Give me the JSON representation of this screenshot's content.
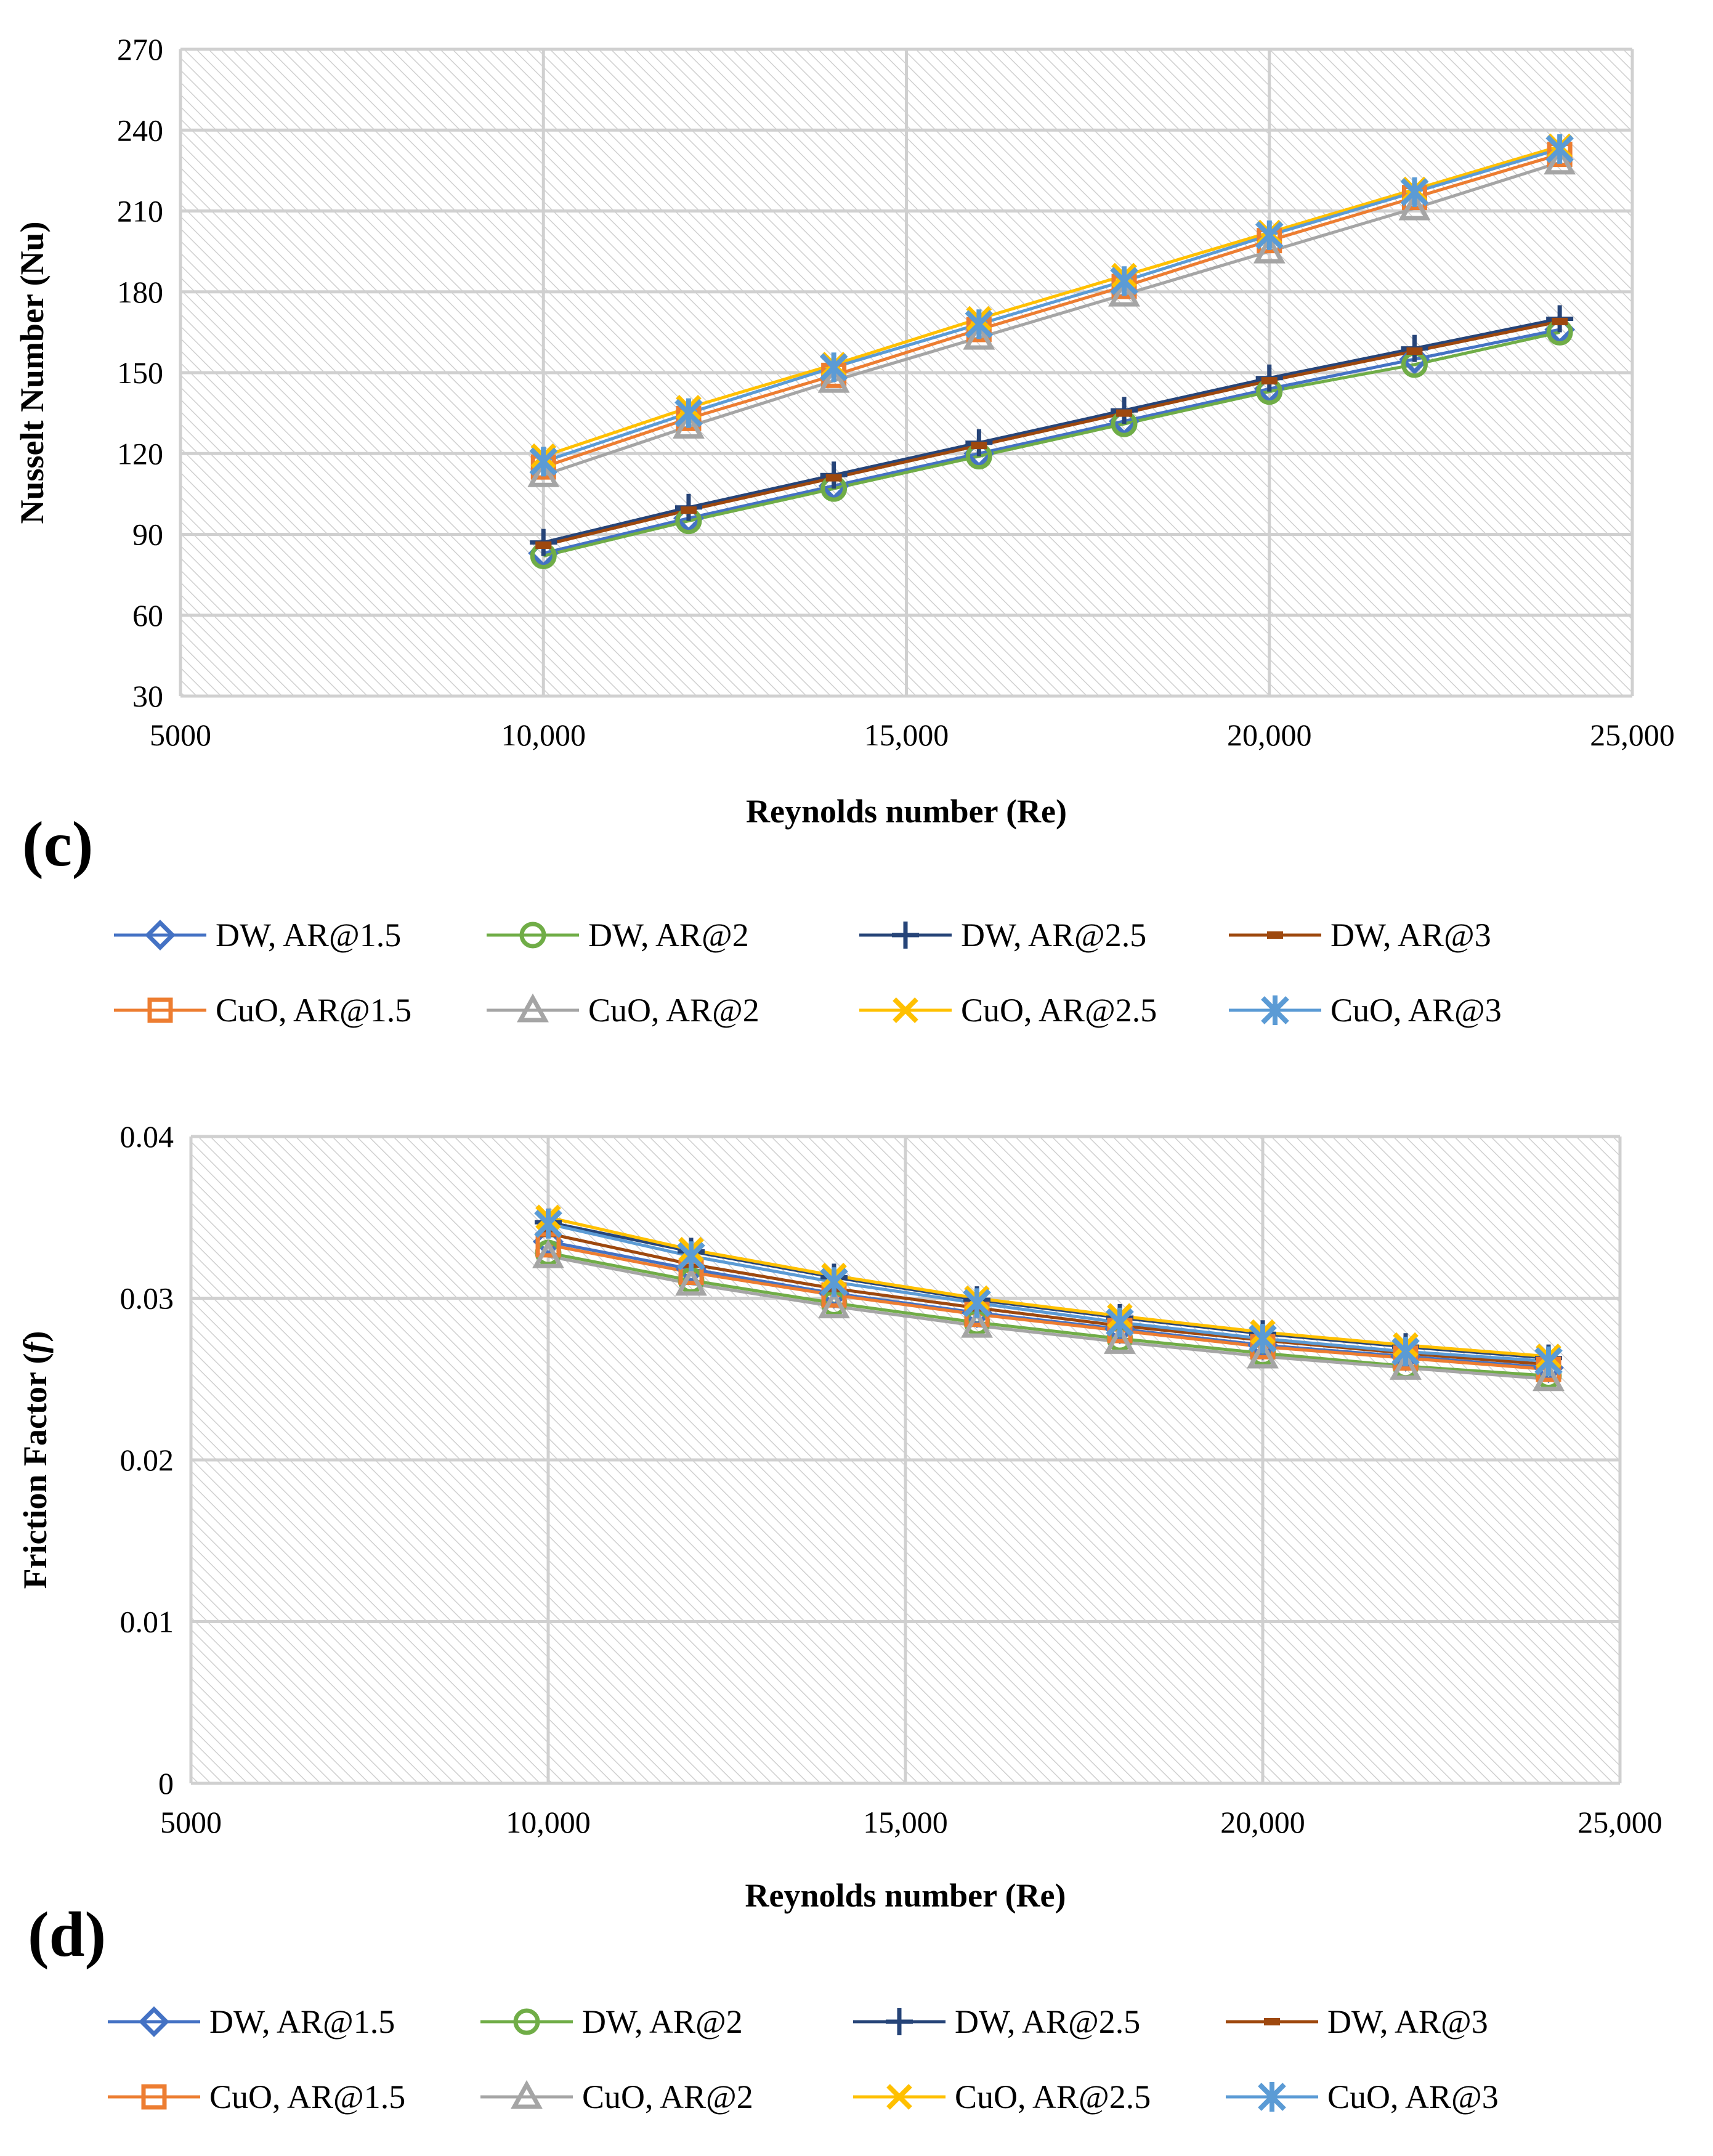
{
  "chart_data": [
    {
      "type": "line",
      "panel_label": "(c)",
      "xlabel": "Reynolds number (Re)",
      "ylabel": "Nusselt Number (Nu)",
      "xlim": [
        5000,
        25000
      ],
      "ylim": [
        30,
        270
      ],
      "x_ticks": [
        5000,
        10000,
        15000,
        20000,
        25000
      ],
      "x_tick_labels": [
        "5000",
        "10,000",
        "15,000",
        "20,000",
        "25,000"
      ],
      "y_ticks": [
        30,
        60,
        90,
        120,
        150,
        180,
        210,
        240,
        270
      ],
      "y_tick_labels": [
        "30",
        "60",
        "90",
        "120",
        "150",
        "180",
        "210",
        "240",
        "270"
      ],
      "grid": true,
      "legend_position": "bottom",
      "x": [
        10000,
        12000,
        14000,
        16000,
        18000,
        20000,
        22000,
        24000
      ],
      "series": [
        {
          "name": "DW, AR@1.5",
          "color": "#4472C4",
          "marker": "diamond",
          "values": [
            83,
            96,
            108,
            120,
            132,
            144,
            155,
            166
          ]
        },
        {
          "name": "DW, AR@2",
          "color": "#70AD47",
          "marker": "circle",
          "values": [
            82,
            95,
            107,
            119,
            131,
            143,
            153,
            165
          ]
        },
        {
          "name": "DW, AR@2.5",
          "color": "#264478",
          "marker": "plus",
          "values": [
            87,
            100,
            112,
            124,
            136,
            148,
            159,
            170
          ]
        },
        {
          "name": "DW, AR@3",
          "color": "#9E480E",
          "marker": "dash",
          "values": [
            86,
            99,
            111,
            123,
            135,
            147,
            158,
            169
          ]
        },
        {
          "name": "CuO, AR@1.5",
          "color": "#ED7D31",
          "marker": "square",
          "values": [
            115,
            133,
            149,
            166,
            182,
            199,
            215,
            231
          ]
        },
        {
          "name": "CuO, AR@2",
          "color": "#A5A5A5",
          "marker": "triangle",
          "values": [
            112,
            130,
            147,
            163,
            179,
            195,
            211,
            228
          ]
        },
        {
          "name": "CuO, AR@2.5",
          "color": "#FFC000",
          "marker": "x",
          "values": [
            119,
            137,
            153,
            170,
            186,
            202,
            218,
            234
          ]
        },
        {
          "name": "CuO, AR@3",
          "color": "#5B9BD5",
          "marker": "star",
          "values": [
            117,
            135,
            152,
            168,
            184,
            201,
            217,
            233
          ]
        }
      ]
    },
    {
      "type": "line",
      "panel_label": "(d)",
      "xlabel": "Reynolds number (Re)",
      "ylabel": "Friction Factor (",
      "ylabel_italic": "f",
      "ylabel_end": ")",
      "xlim": [
        5000,
        25000
      ],
      "ylim": [
        0,
        0.04
      ],
      "x_ticks": [
        5000,
        10000,
        15000,
        20000,
        25000
      ],
      "x_tick_labels": [
        "5000",
        "10,000",
        "15,000",
        "20,000",
        "25,000"
      ],
      "y_ticks": [
        0,
        0.01,
        0.02,
        0.03,
        0.04
      ],
      "y_tick_labels": [
        "0",
        "0.01",
        "0.02",
        "0.03",
        "0.04"
      ],
      "grid": true,
      "legend_position": "bottom",
      "x": [
        10000,
        12000,
        14000,
        16000,
        18000,
        20000,
        22000,
        24000
      ],
      "series": [
        {
          "name": "DW, AR@1.5",
          "color": "#4472C4",
          "marker": "diamond",
          "values": [
            0.0335,
            0.0318,
            0.0303,
            0.0291,
            0.0281,
            0.0271,
            0.0264,
            0.0257
          ]
        },
        {
          "name": "DW, AR@2",
          "color": "#70AD47",
          "marker": "circle",
          "values": [
            0.0328,
            0.0311,
            0.0297,
            0.0285,
            0.0275,
            0.0266,
            0.0258,
            0.0252
          ]
        },
        {
          "name": "DW, AR@2.5",
          "color": "#264478",
          "marker": "plus",
          "values": [
            0.0347,
            0.0329,
            0.0313,
            0.0299,
            0.0288,
            0.0278,
            0.027,
            0.0263
          ]
        },
        {
          "name": "DW, AR@3",
          "color": "#9E480E",
          "marker": "dash",
          "values": [
            0.034,
            0.0321,
            0.0306,
            0.0294,
            0.0283,
            0.0274,
            0.0266,
            0.0259
          ]
        },
        {
          "name": "CuO, AR@1.5",
          "color": "#ED7D31",
          "marker": "square",
          "values": [
            0.0333,
            0.0316,
            0.0302,
            0.029,
            0.028,
            0.027,
            0.0263,
            0.0256
          ]
        },
        {
          "name": "CuO, AR@2",
          "color": "#A5A5A5",
          "marker": "triangle",
          "values": [
            0.0326,
            0.0309,
            0.0295,
            0.0283,
            0.0273,
            0.0264,
            0.0257,
            0.025
          ]
        },
        {
          "name": "CuO, AR@2.5",
          "color": "#FFC000",
          "marker": "x",
          "values": [
            0.035,
            0.033,
            0.0314,
            0.03,
            0.0289,
            0.0279,
            0.0271,
            0.0264
          ]
        },
        {
          "name": "CuO, AR@3",
          "color": "#5B9BD5",
          "marker": "star",
          "values": [
            0.0346,
            0.0326,
            0.031,
            0.0297,
            0.0285,
            0.0275,
            0.0267,
            0.0261
          ]
        }
      ]
    }
  ]
}
